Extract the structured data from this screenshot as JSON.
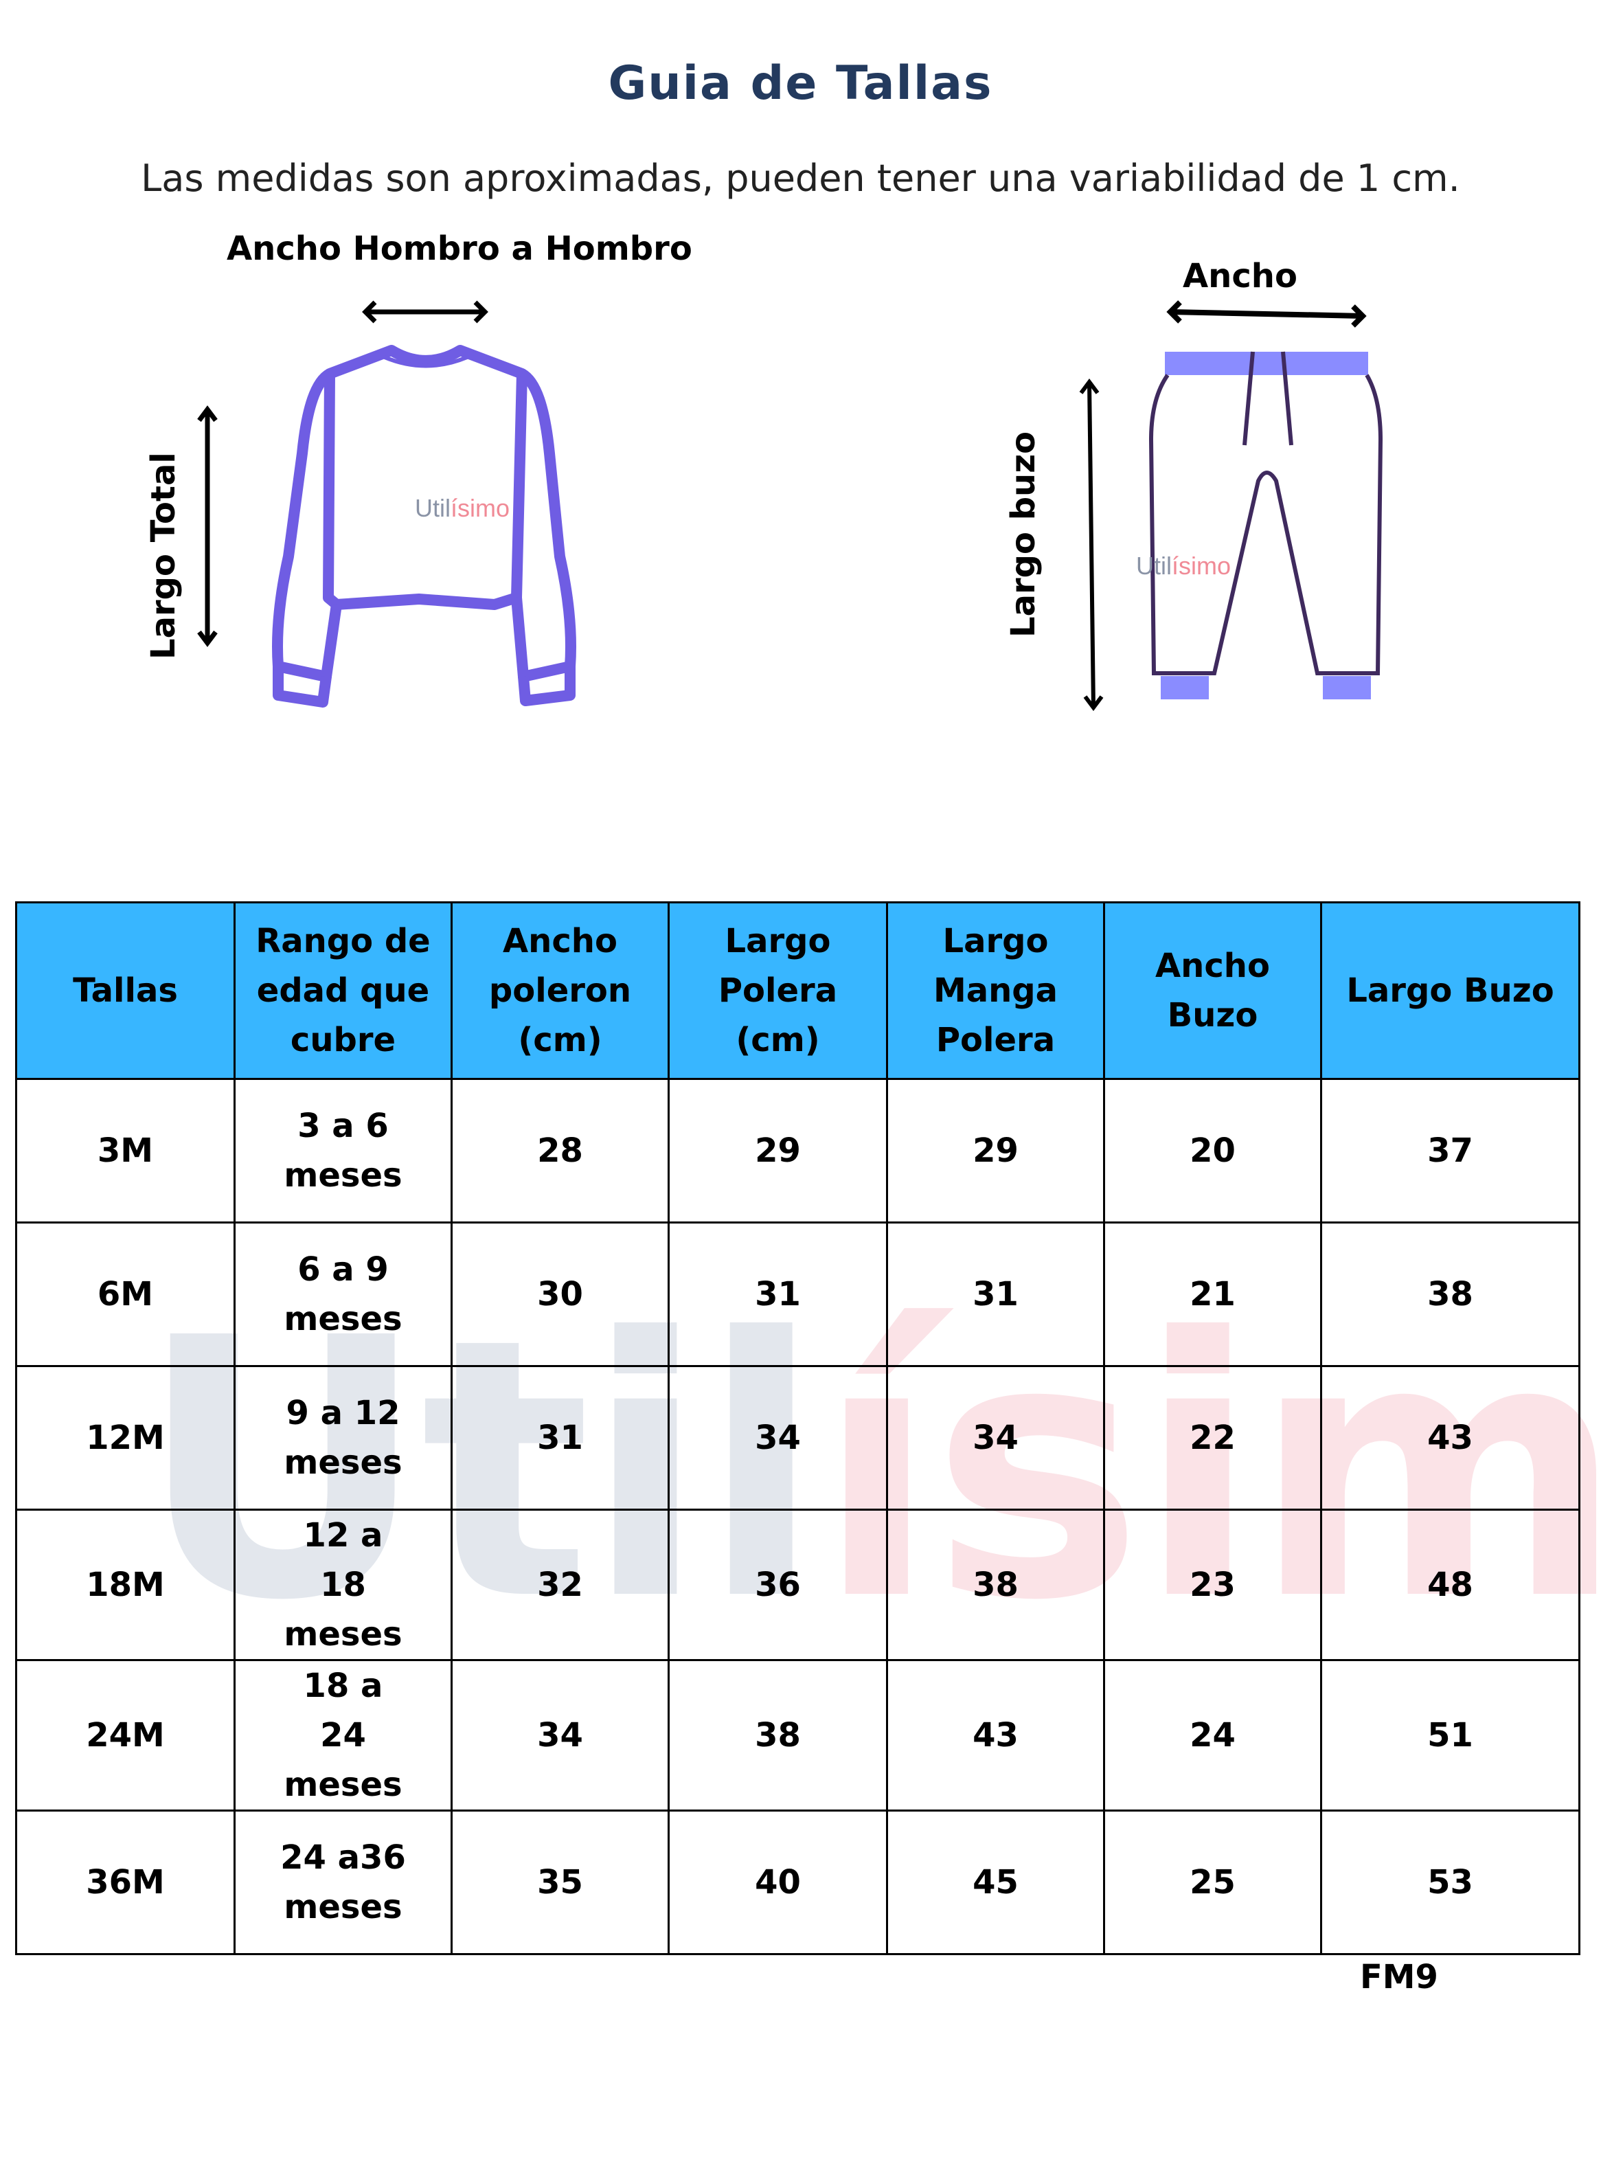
{
  "title": "Guia de Tallas",
  "subtitle": "Las medidas son aproximadas, pueden tener una variabilidad de 1 cm.",
  "diagrams": {
    "sweater": {
      "width_label": "Ancho Hombro a Hombro",
      "length_label": "Largo Total",
      "watermark": "Utilísimo",
      "color": "#6f5de3"
    },
    "pants": {
      "width_label": "Ancho",
      "length_label": "Largo buzo",
      "watermark": "Utilísimo",
      "color": "#3f2a5e",
      "band_color": "#8a8cff"
    }
  },
  "watermark": {
    "part1": "Util",
    "part2": "ísimo"
  },
  "table": {
    "header_color": "#38b6ff",
    "headers": [
      "Tallas",
      "Rango de edad que cubre",
      "Ancho poleron (cm)",
      "Largo Polera (cm)",
      "Largo Manga Polera",
      "Ancho Buzo",
      "Largo Buzo"
    ],
    "rows": [
      [
        "3M",
        "3 a 6 meses",
        "28",
        "29",
        "29",
        "20",
        "37"
      ],
      [
        "6M",
        "6 a 9 meses",
        "30",
        "31",
        "31",
        "21",
        "38"
      ],
      [
        "12M",
        "9 a 12 meses",
        "31",
        "34",
        "34",
        "22",
        "43"
      ],
      [
        "18M",
        "12 a 18 meses",
        "32",
        "36",
        "38",
        "23",
        "48"
      ],
      [
        "24M",
        "18 a 24 meses",
        "34",
        "38",
        "43",
        "24",
        "51"
      ],
      [
        "36M",
        "24 a36 meses",
        "35",
        "40",
        "45",
        "25",
        "53"
      ]
    ]
  },
  "code": "FM9"
}
